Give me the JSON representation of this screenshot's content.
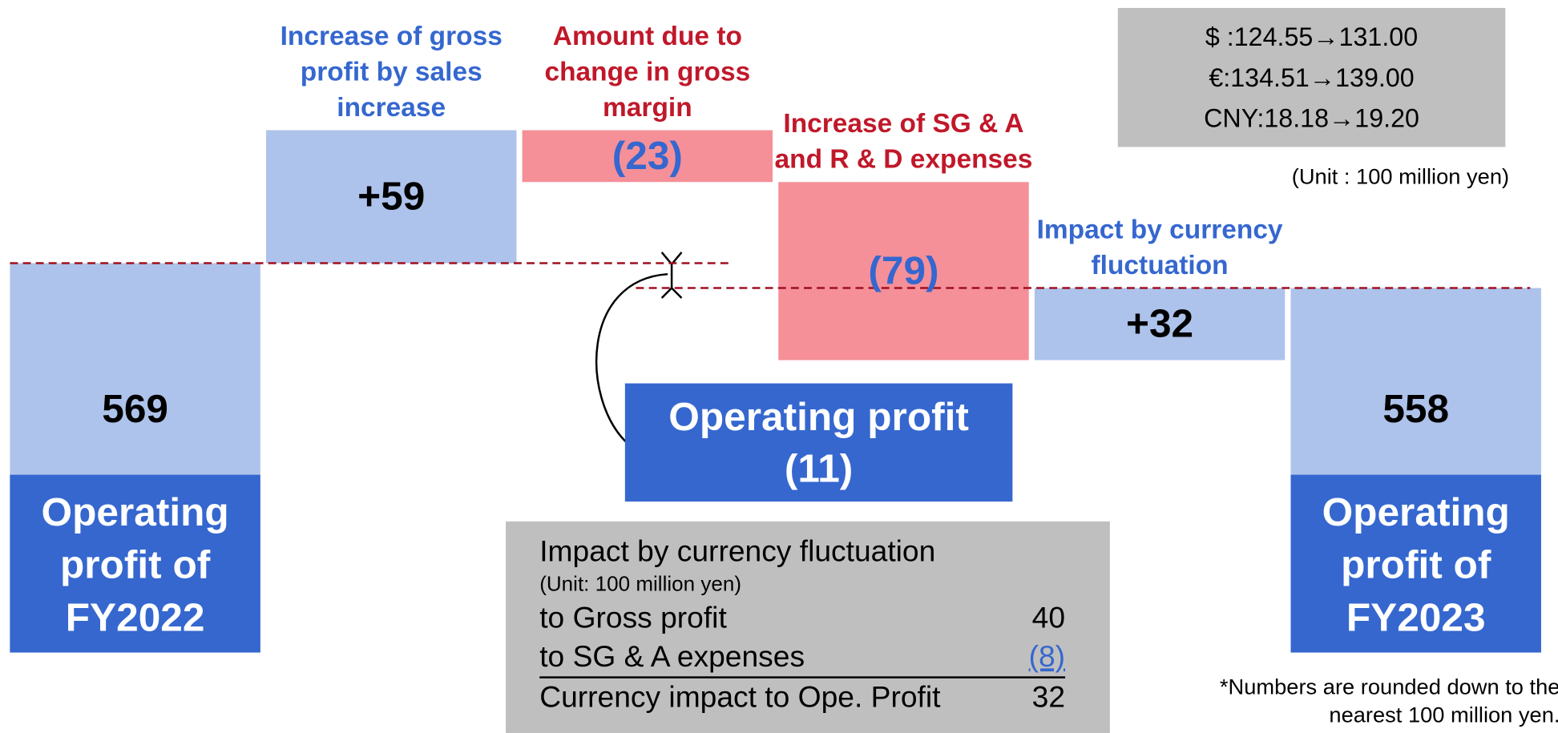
{
  "chart_data": {
    "type": "waterfall",
    "categories": [
      "Operating profit of FY2022",
      "Increase of gross profit by sales increase",
      "Amount due to change in gross margin",
      "Increase of SG & A and R & D expenses",
      "Impact by currency fluctuation",
      "Operating profit of FY2023"
    ],
    "values": [
      569,
      59,
      -23,
      -79,
      32,
      558
    ],
    "value_labels": [
      "569",
      "+59",
      "(23)",
      "(79)",
      "+32",
      "558"
    ],
    "measure": [
      "total",
      "relative",
      "relative",
      "relative",
      "relative",
      "total"
    ],
    "colors": [
      "#aec3eb",
      "#aec3eb",
      "#f59098",
      "#f59098",
      "#aec3eb",
      "#aec3eb"
    ],
    "category_colors": [
      "#ffffff",
      "#3567cf",
      "#c0182a",
      "#c0182a",
      "#3567cf",
      "#ffffff"
    ],
    "value_label_colors": [
      "#000000",
      "#000000",
      "#3567cf",
      "#3567cf",
      "#000000",
      "#000000"
    ],
    "change": {
      "label": "Operating profit",
      "value_label": "(11)"
    },
    "exchange_rates": [
      "$ :124.55→131.00",
      "€:134.51→139.00",
      "CNY:18.18→19.20"
    ],
    "unit": "(Unit : 100 million yen)",
    "currency_table": {
      "title": "Impact by currency fluctuation",
      "unit": "(Unit: 100 million yen)",
      "rows": [
        [
          "to Gross profit",
          "40"
        ],
        [
          "to SG & A expenses",
          "(8)"
        ],
        [
          "Currency impact to Ope. Profit",
          "32"
        ]
      ]
    },
    "footnote": "*Numbers are rounded down to the nearest 100 million yen."
  }
}
